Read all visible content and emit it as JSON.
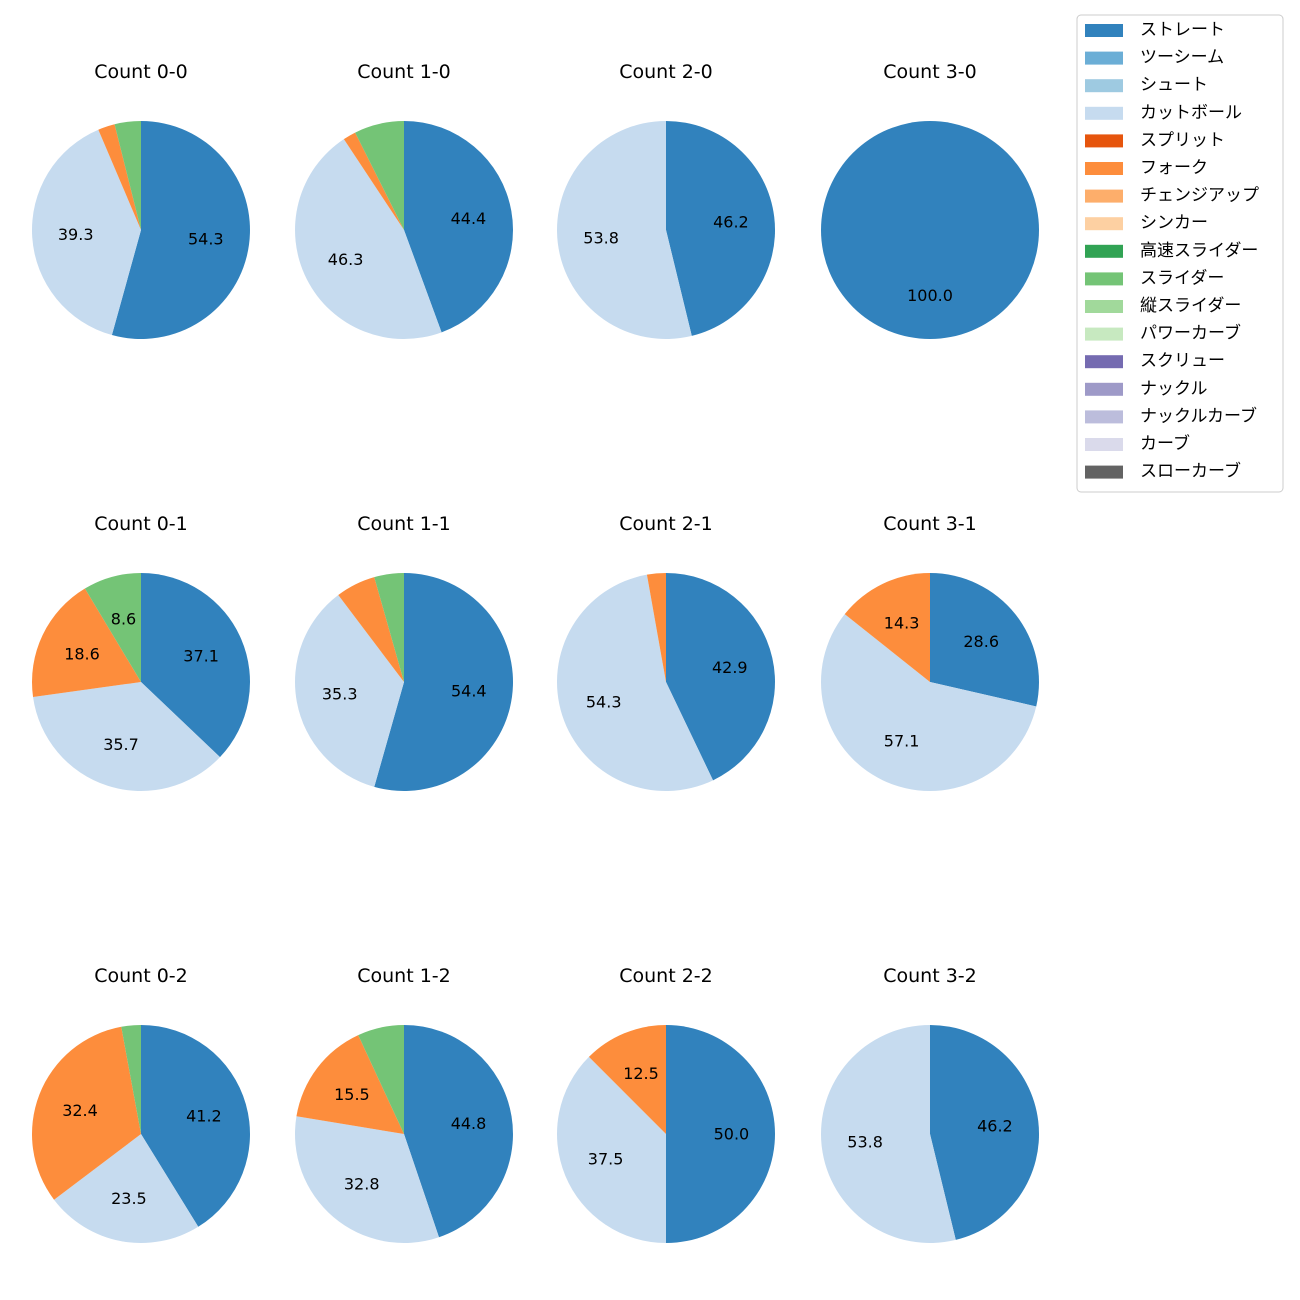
{
  "pitch_types": [
    {
      "name": "ストレート",
      "color": "#3182bd"
    },
    {
      "name": "ツーシーム",
      "color": "#6baed6"
    },
    {
      "name": "シュート",
      "color": "#9ecae1"
    },
    {
      "name": "カットボール",
      "color": "#c6dbef"
    },
    {
      "name": "スプリット",
      "color": "#e6550d"
    },
    {
      "name": "フォーク",
      "color": "#fd8d3c"
    },
    {
      "name": "チェンジアップ",
      "color": "#fdae6b"
    },
    {
      "name": "シンカー",
      "color": "#fdd0a2"
    },
    {
      "name": "高速スライダー",
      "color": "#31a354"
    },
    {
      "name": "スライダー",
      "color": "#74c476"
    },
    {
      "name": "縦スライダー",
      "color": "#a1d99b"
    },
    {
      "name": "パワーカーブ",
      "color": "#c7e9c0"
    },
    {
      "name": "スクリュー",
      "color": "#756bb1"
    },
    {
      "name": "ナックル",
      "color": "#9e9ac8"
    },
    {
      "name": "ナックルカーブ",
      "color": "#bcbddc"
    },
    {
      "name": "カーブ",
      "color": "#dadaeb"
    },
    {
      "name": "スローカーブ",
      "color": "#636363"
    }
  ],
  "chart_data": [
    {
      "type": "pie",
      "title": "Count 0-0",
      "slices": [
        {
          "type": "ストレート",
          "value": 54.3,
          "label": "54.3"
        },
        {
          "type": "カットボール",
          "value": 39.3,
          "label": "39.3"
        },
        {
          "type": "フォーク",
          "value": 2.5,
          "label": ""
        },
        {
          "type": "スライダー",
          "value": 3.9,
          "label": ""
        }
      ]
    },
    {
      "type": "pie",
      "title": "Count 1-0",
      "slices": [
        {
          "type": "ストレート",
          "value": 44.4,
          "label": "44.4"
        },
        {
          "type": "カットボール",
          "value": 46.3,
          "label": "46.3"
        },
        {
          "type": "フォーク",
          "value": 1.9,
          "label": ""
        },
        {
          "type": "スライダー",
          "value": 7.4,
          "label": ""
        }
      ]
    },
    {
      "type": "pie",
      "title": "Count 2-0",
      "slices": [
        {
          "type": "ストレート",
          "value": 46.2,
          "label": "46.2"
        },
        {
          "type": "カットボール",
          "value": 53.8,
          "label": "53.8"
        }
      ]
    },
    {
      "type": "pie",
      "title": "Count 3-0",
      "slices": [
        {
          "type": "ストレート",
          "value": 100.0,
          "label": "100.0"
        }
      ]
    },
    {
      "type": "pie",
      "title": "Count 0-1",
      "slices": [
        {
          "type": "ストレート",
          "value": 37.1,
          "label": "37.1"
        },
        {
          "type": "カットボール",
          "value": 35.7,
          "label": "35.7"
        },
        {
          "type": "フォーク",
          "value": 18.6,
          "label": "18.6"
        },
        {
          "type": "スライダー",
          "value": 8.6,
          "label": "8.6"
        }
      ]
    },
    {
      "type": "pie",
      "title": "Count 1-1",
      "slices": [
        {
          "type": "ストレート",
          "value": 54.4,
          "label": "54.4"
        },
        {
          "type": "カットボール",
          "value": 35.3,
          "label": "35.3"
        },
        {
          "type": "フォーク",
          "value": 5.9,
          "label": ""
        },
        {
          "type": "スライダー",
          "value": 4.4,
          "label": ""
        }
      ]
    },
    {
      "type": "pie",
      "title": "Count 2-1",
      "slices": [
        {
          "type": "ストレート",
          "value": 42.9,
          "label": "42.9"
        },
        {
          "type": "カットボール",
          "value": 54.3,
          "label": "54.3"
        },
        {
          "type": "フォーク",
          "value": 2.8,
          "label": ""
        }
      ]
    },
    {
      "type": "pie",
      "title": "Count 3-1",
      "slices": [
        {
          "type": "ストレート",
          "value": 28.6,
          "label": "28.6"
        },
        {
          "type": "カットボール",
          "value": 57.1,
          "label": "57.1"
        },
        {
          "type": "フォーク",
          "value": 14.3,
          "label": "14.3"
        }
      ]
    },
    {
      "type": "pie",
      "title": "Count 0-2",
      "slices": [
        {
          "type": "ストレート",
          "value": 41.2,
          "label": "41.2"
        },
        {
          "type": "カットボール",
          "value": 23.5,
          "label": "23.5"
        },
        {
          "type": "フォーク",
          "value": 32.4,
          "label": "32.4"
        },
        {
          "type": "スライダー",
          "value": 2.9,
          "label": ""
        }
      ]
    },
    {
      "type": "pie",
      "title": "Count 1-2",
      "slices": [
        {
          "type": "ストレート",
          "value": 44.8,
          "label": "44.8"
        },
        {
          "type": "カットボール",
          "value": 32.8,
          "label": "32.8"
        },
        {
          "type": "フォーク",
          "value": 15.5,
          "label": "15.5"
        },
        {
          "type": "スライダー",
          "value": 6.9,
          "label": ""
        }
      ]
    },
    {
      "type": "pie",
      "title": "Count 2-2",
      "slices": [
        {
          "type": "ストレート",
          "value": 50.0,
          "label": "50.0"
        },
        {
          "type": "カットボール",
          "value": 37.5,
          "label": "37.5"
        },
        {
          "type": "フォーク",
          "value": 12.5,
          "label": "12.5"
        }
      ]
    },
    {
      "type": "pie",
      "title": "Count 3-2",
      "slices": [
        {
          "type": "ストレート",
          "value": 46.2,
          "label": "46.2"
        },
        {
          "type": "カットボール",
          "value": 53.8,
          "label": "53.8"
        }
      ]
    }
  ],
  "legend": {
    "placement": "top-right"
  }
}
